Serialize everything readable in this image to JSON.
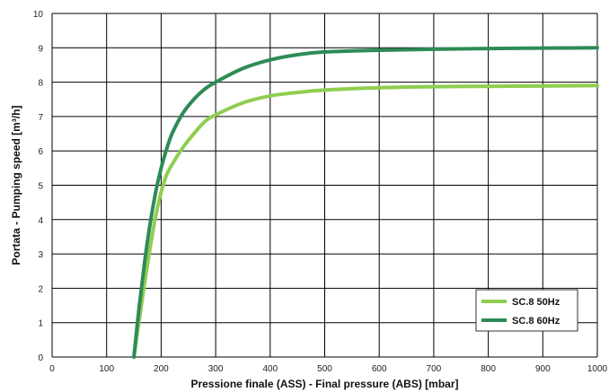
{
  "chart_data": {
    "type": "line",
    "title": "",
    "xlabel": "Pressione finale (ASS) - Final pressure (ABS) [mbar]",
    "ylabel": "Portata - Pumping speed [m³/h]",
    "xlim": [
      0,
      1000
    ],
    "ylim": [
      0,
      10
    ],
    "xticks": [
      "0",
      "100",
      "200",
      "300",
      "400",
      "500",
      "600",
      "700",
      "800",
      "900",
      "1000"
    ],
    "yticks": [
      "0",
      "1",
      "2",
      "3",
      "4",
      "5",
      "6",
      "7",
      "8",
      "9",
      "10"
    ],
    "grid": true,
    "legend_position": "bottom-right",
    "series": [
      {
        "name": "SC.8 50Hz",
        "color": "#8fce4f",
        "x": [
          150,
          160,
          170,
          180,
          190,
          200,
          210,
          220,
          240,
          260,
          280,
          300,
          350,
          400,
          450,
          500,
          600,
          700,
          800,
          900,
          1000
        ],
        "y": [
          0,
          1.1,
          2.2,
          3.2,
          4.1,
          4.8,
          5.3,
          5.6,
          6.1,
          6.5,
          6.85,
          7.05,
          7.4,
          7.6,
          7.7,
          7.77,
          7.84,
          7.87,
          7.88,
          7.89,
          7.9
        ]
      },
      {
        "name": "SC.8 60Hz",
        "color": "#2e8b57",
        "x": [
          150,
          160,
          170,
          180,
          190,
          200,
          210,
          220,
          240,
          260,
          280,
          300,
          350,
          400,
          450,
          500,
          600,
          700,
          800,
          900,
          1000
        ],
        "y": [
          0,
          1.5,
          2.8,
          3.9,
          4.8,
          5.5,
          6.05,
          6.5,
          7.1,
          7.5,
          7.8,
          8.0,
          8.4,
          8.65,
          8.8,
          8.88,
          8.93,
          8.96,
          8.98,
          8.99,
          9.0
        ]
      }
    ]
  }
}
